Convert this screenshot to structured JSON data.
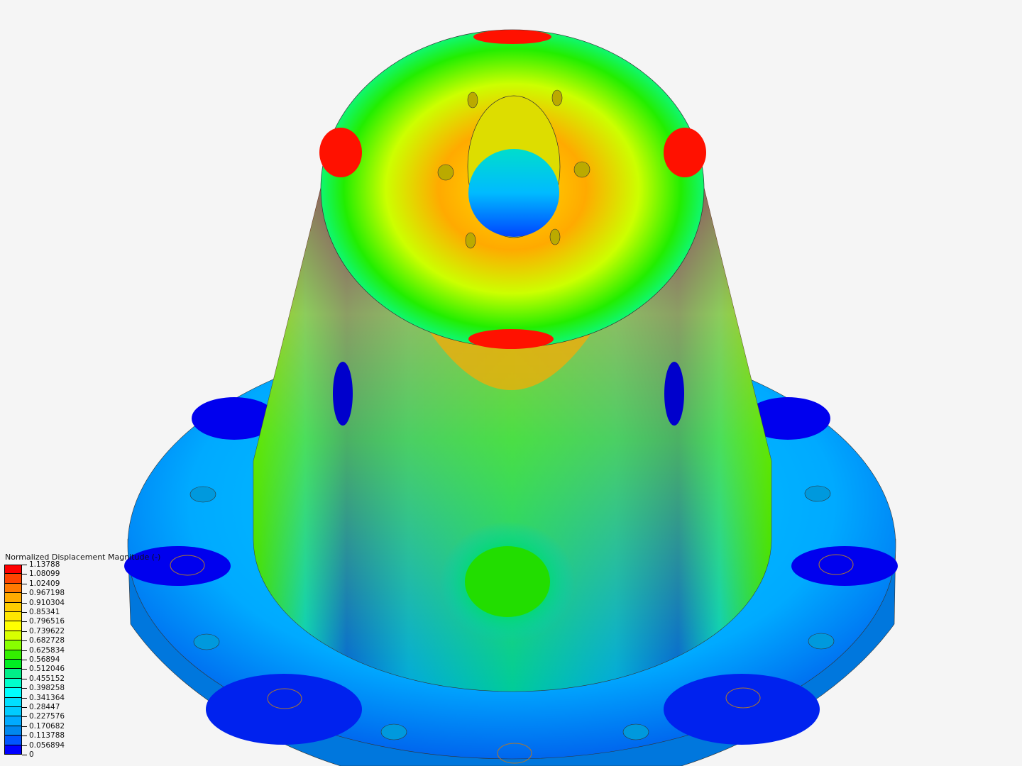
{
  "legend": {
    "title": "Normalized Displacement Magnitude (-)",
    "labels": [
      "1.13788",
      "1.08099",
      "1.02409",
      "0.967198",
      "0.910304",
      "0.85341",
      "0.796516",
      "0.739622",
      "0.682728",
      "0.625834",
      "0.56894",
      "0.512046",
      "0.455152",
      "0.398258",
      "0.341364",
      "0.28447",
      "0.227576",
      "0.170682",
      "0.113788",
      "0.056894",
      "0"
    ],
    "colors": [
      "#ff0000",
      "#ff4400",
      "#ff7a00",
      "#ffaa00",
      "#ffcc00",
      "#ffe600",
      "#ffff00",
      "#d8ff00",
      "#88ff00",
      "#33ee00",
      "#00ee22",
      "#00ee88",
      "#00ffcc",
      "#00ffff",
      "#00e0ff",
      "#00ccff",
      "#00aaff",
      "#0088ee",
      "#0055ff",
      "#0000ff"
    ]
  }
}
